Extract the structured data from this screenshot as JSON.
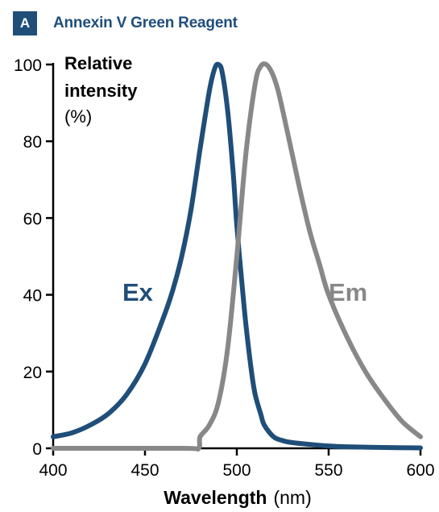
{
  "panel": {
    "badge": "A",
    "title": "Annexin V Green Reagent"
  },
  "chart_data": {
    "type": "line",
    "title": "Annexin V Green Reagent",
    "xlabel_bold": "Wavelength",
    "xlabel_unit": "(nm)",
    "ylabel_bold_lines": [
      "Relative",
      "intensity"
    ],
    "ylabel_unit": "(%)",
    "xlim": [
      400,
      600
    ],
    "ylim": [
      0,
      100
    ],
    "xticks": [
      400,
      450,
      500,
      550,
      600
    ],
    "yticks": [
      0,
      20,
      40,
      60,
      80,
      100
    ],
    "grid": false,
    "series": [
      {
        "name": "Ex",
        "color": "#1f4e79",
        "x": [
          400,
          410,
          420,
          430,
          440,
          450,
          460,
          465,
          470,
          475,
          480,
          485,
          488,
          490,
          492,
          495,
          498,
          500,
          503,
          505,
          508,
          510,
          513,
          515,
          520,
          525,
          530,
          540,
          550,
          560,
          580,
          600
        ],
        "y": [
          3,
          4,
          6,
          9,
          14,
          22,
          34,
          41,
          50,
          62,
          78,
          93,
          99,
          100,
          98,
          88,
          72,
          58,
          42,
          32,
          20,
          14,
          9,
          6,
          3,
          2,
          1.5,
          1,
          0.6,
          0.4,
          0.2,
          0.1
        ]
      },
      {
        "name": "Em",
        "color": "#888888",
        "x": [
          400,
          470,
          479,
          480,
          485,
          490,
          495,
          500,
          505,
          510,
          513,
          516,
          519,
          522,
          525,
          530,
          535,
          540,
          545,
          550,
          560,
          570,
          580,
          590,
          600
        ],
        "y": [
          0,
          0,
          0,
          3,
          6,
          12,
          26,
          50,
          77,
          95,
          99.5,
          100,
          98,
          94,
          88,
          77,
          66,
          56,
          48,
          40,
          29,
          20,
          13,
          7,
          3
        ]
      }
    ]
  }
}
